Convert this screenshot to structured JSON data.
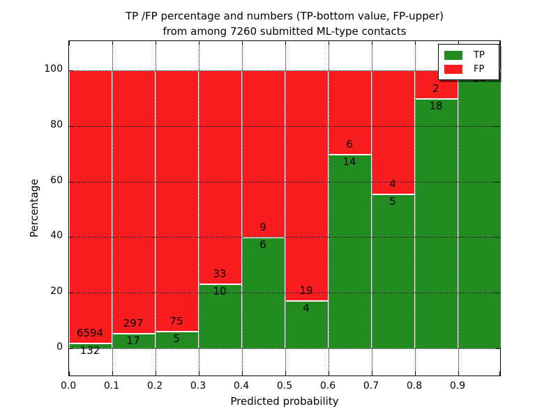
{
  "title": {
    "line1": "TP /FP percentage and numbers (TP-bottom value, FP-upper)",
    "line2": "from among 7260 submitted ML-type contacts"
  },
  "axis": {
    "xlabel": "Predicted probability",
    "ylabel": "Percentage",
    "x_tick_labels": [
      "0.0",
      "0.1",
      "0.2",
      "0.3",
      "0.4",
      "0.5",
      "0.6",
      "0.7",
      "0.8",
      "0.9"
    ],
    "y_tick_labels": [
      "0",
      "20",
      "40",
      "60",
      "80",
      "100"
    ]
  },
  "legend": {
    "items": [
      {
        "label": "TP",
        "color": "#228b22"
      },
      {
        "label": "FP",
        "color": "#fb1d1d"
      }
    ]
  },
  "chart_data": {
    "type": "bar",
    "stacked": true,
    "normalized": "percent_of_bin_total",
    "title": "TP /FP percentage and numbers (TP-bottom value, FP-upper) from among 7260 submitted ML-type contacts",
    "xlabel": "Predicted probability",
    "ylabel": "Percentage",
    "xlim": [
      0.0,
      1.0
    ],
    "ylim": [
      -10,
      110
    ],
    "x_ticks": [
      0.0,
      0.1,
      0.2,
      0.3,
      0.4,
      0.5,
      0.6,
      0.7,
      0.8,
      0.9
    ],
    "y_ticks": [
      0,
      20,
      40,
      60,
      80,
      100
    ],
    "bin_edges": [
      0.0,
      0.1,
      0.2,
      0.3,
      0.4,
      0.5,
      0.6,
      0.7,
      0.8,
      0.9,
      1.0
    ],
    "series": [
      {
        "name": "TP",
        "color": "#228b22",
        "counts": [
          132,
          17,
          5,
          10,
          6,
          4,
          14,
          5,
          18,
          10
        ]
      },
      {
        "name": "FP",
        "color": "#fb1d1d",
        "counts": [
          6594,
          297,
          75,
          33,
          9,
          19,
          6,
          4,
          2,
          0
        ]
      }
    ],
    "tp_percent_per_bin": [
      1.96,
      5.41,
      6.25,
      23.26,
      40.0,
      17.39,
      70.0,
      55.56,
      90.0,
      100.0
    ],
    "total_contacts": 7260,
    "grid": "dotted",
    "legend_position": "upper right",
    "label_note": "TP count printed below the green/red boundary, FP count above it; FP label of last bin hidden behind legend"
  }
}
